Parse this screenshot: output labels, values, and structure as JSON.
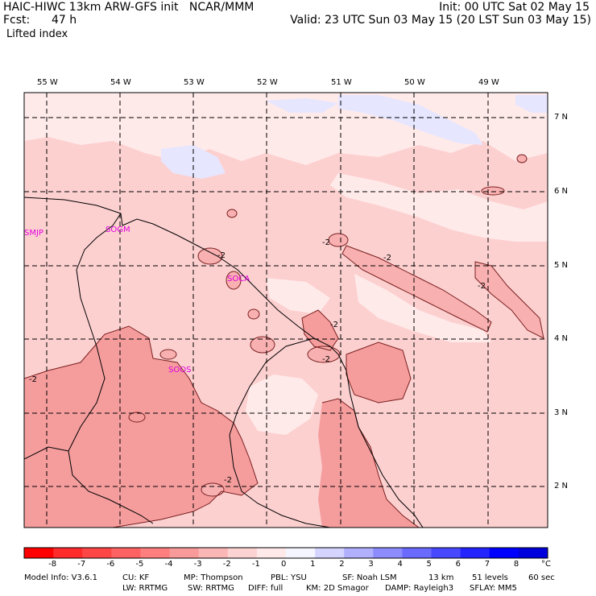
{
  "header": {
    "model_line": "HAIC-HIWC 13km ARW-GFS init   NCAR/MMM",
    "fcst_label": "Fcst:",
    "fcst_value": "47 h",
    "field_name": "Lifted index",
    "init_time": "Init: 00 UTC Sat 02 May 15",
    "valid_time": "Valid: 23 UTC Sun 03 May 15 (20 LST Sun 03 May 15)"
  },
  "map": {
    "longitude_labels": [
      "55 W",
      "54 W",
      "53 W",
      "52 W",
      "51 W",
      "50 W",
      "49 W"
    ],
    "latitude_labels": [
      "7 N",
      "6 N",
      "5 N",
      "4 N",
      "3 N",
      "2 N"
    ],
    "stations": [
      "SMJP",
      "SOGM",
      "SOCA",
      "SOOS"
    ],
    "contour_label": "-2",
    "colors": {
      "dark_pink": "#f59d9d",
      "light_pink": "#fdd0d0",
      "pale_pink": "#ffeaea",
      "blue_tint": "#e6e6ff",
      "station": "#e000e0"
    }
  },
  "colorbar": {
    "unit": "°C",
    "tick_labels": [
      "-8",
      "-7",
      "-6",
      "-5",
      "-4",
      "-3",
      "-2",
      "-1",
      "0",
      "1",
      "2",
      "3",
      "4",
      "5",
      "6",
      "7",
      "8"
    ],
    "colors": [
      "#ff0000",
      "#ff2a2a",
      "#ff4646",
      "#ff6262",
      "#ff7e7e",
      "#f99a9a",
      "#fbb6b6",
      "#fdd2d2",
      "#ffe9e9",
      "#f5f5ff",
      "#d4d4ff",
      "#b0b0ff",
      "#8c8cff",
      "#6a6aff",
      "#4848ff",
      "#2424ff",
      "#0000ff",
      "#0000dd"
    ]
  },
  "footer": {
    "line1": [
      {
        "key": "model_info",
        "text": "Model Info: V3.6.1"
      },
      {
        "key": "cu",
        "text": "CU: KF"
      },
      {
        "key": "mp",
        "text": "MP: Thompson"
      },
      {
        "key": "pbl",
        "text": "PBL: YSU"
      },
      {
        "key": "sf",
        "text": "SF: Noah LSM"
      },
      {
        "key": "res",
        "text": "13 km"
      },
      {
        "key": "levels",
        "text": "51 levels"
      },
      {
        "key": "dt",
        "text": "60 sec"
      }
    ],
    "line2": [
      {
        "key": "lw",
        "text": "LW: RRTMG"
      },
      {
        "key": "sw",
        "text": "SW: RRTMG"
      },
      {
        "key": "diff",
        "text": "DIFF: full"
      },
      {
        "key": "km",
        "text": "KM: 2D Smagor"
      },
      {
        "key": "damp",
        "text": "DAMP: Rayleigh3"
      },
      {
        "key": "sflay",
        "text": "SFLAY: MM5"
      }
    ]
  }
}
